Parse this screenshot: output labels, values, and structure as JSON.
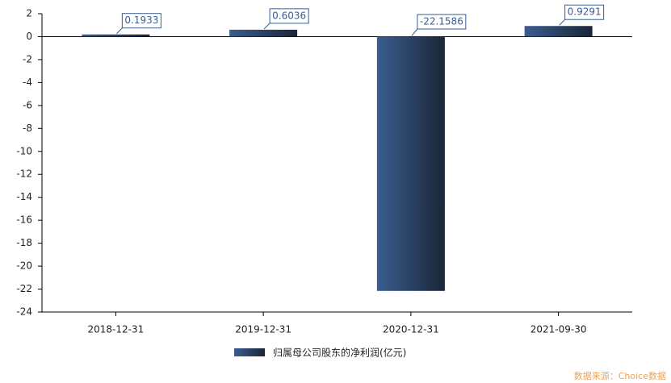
{
  "chart_data": {
    "type": "bar",
    "categories": [
      "2018-12-31",
      "2019-12-31",
      "2020-12-31",
      "2021-09-30"
    ],
    "series": [
      {
        "name": "归属母公司股东的净利润(亿元)",
        "color": "#3a5d8f",
        "values": [
          0.1933,
          0.6036,
          -22.1586,
          0.9291
        ]
      }
    ],
    "ylim": [
      -24,
      2
    ],
    "yticks": [
      -24,
      -22,
      -20,
      -18,
      -16,
      -14,
      -12,
      -10,
      -8,
      -6,
      -4,
      -2,
      0,
      2
    ],
    "source": "数据来源：Choice数据"
  }
}
